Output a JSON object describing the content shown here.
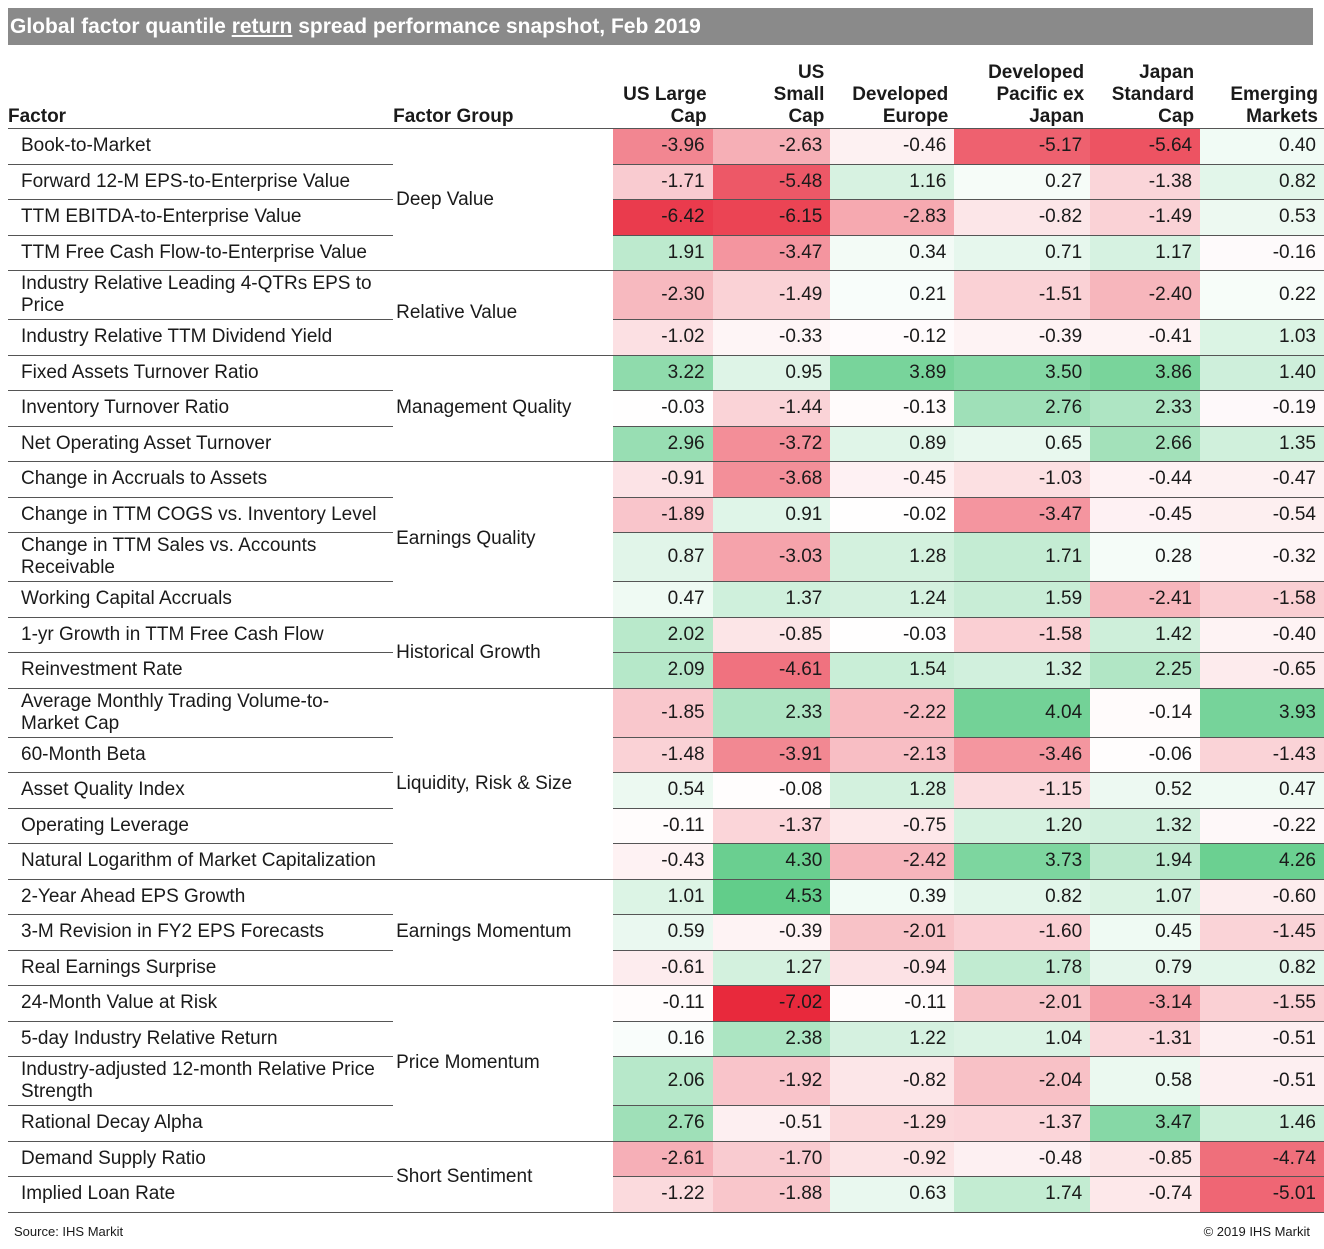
{
  "title_parts": {
    "before": "Global factor quantile ",
    "underlined": "return",
    "after": " spread performance snapshot, Feb 2019"
  },
  "footer": {
    "source": "Source: IHS Markit",
    "copyright": "© 2019 IHS Markit"
  },
  "chart_data": {
    "type": "heatmap",
    "headers": {
      "factor": "Factor",
      "group": "Factor Group",
      "columns": [
        [
          "US Large",
          "Cap"
        ],
        [
          "US",
          "Small",
          "Cap"
        ],
        [
          "Developed",
          "Europe"
        ],
        [
          "Developed",
          "Pacific ex",
          "Japan"
        ],
        [
          "Japan",
          "Standard",
          "Cap"
        ],
        [
          "Emerging",
          "Markets"
        ]
      ]
    },
    "color_scale": {
      "negative": "#e8293c",
      "neutral": "#ffffff",
      "positive": "#0bb14a",
      "max_abs": 7.02
    },
    "groups": [
      {
        "name": "Deep Value",
        "rows": [
          {
            "factor": [
              "Book-to-Market"
            ],
            "values": [
              -3.96,
              -2.63,
              -0.46,
              -5.17,
              -5.64,
              0.4
            ]
          },
          {
            "factor": [
              "Forward 12-M EPS-to-Enterprise Value"
            ],
            "values": [
              -1.71,
              -5.48,
              1.16,
              0.27,
              -1.38,
              0.82
            ]
          },
          {
            "factor": [
              "TTM EBITDA-to-Enterprise Value"
            ],
            "values": [
              -6.42,
              -6.15,
              -2.83,
              -0.82,
              -1.49,
              0.53
            ]
          },
          {
            "factor": [
              "TTM Free Cash Flow-to-Enterprise Value"
            ],
            "values": [
              1.91,
              -3.47,
              0.34,
              0.71,
              1.17,
              -0.16
            ]
          }
        ]
      },
      {
        "name": "Relative Value",
        "rows": [
          {
            "factor": [
              "Industry Relative Leading 4-QTRs EPS to",
              "Price"
            ],
            "values": [
              -2.3,
              -1.49,
              0.21,
              -1.51,
              -2.4,
              0.22
            ]
          },
          {
            "factor": [
              "Industry Relative TTM Dividend Yield"
            ],
            "values": [
              -1.02,
              -0.33,
              -0.12,
              -0.39,
              -0.41,
              1.03
            ]
          }
        ]
      },
      {
        "name": "Management Quality",
        "rows": [
          {
            "factor": [
              "Fixed Assets Turnover Ratio"
            ],
            "values": [
              3.22,
              0.95,
              3.89,
              3.5,
              3.86,
              1.4
            ]
          },
          {
            "factor": [
              "Inventory Turnover Ratio"
            ],
            "values": [
              -0.03,
              -1.44,
              -0.13,
              2.76,
              2.33,
              -0.19
            ]
          },
          {
            "factor": [
              "Net Operating Asset Turnover"
            ],
            "values": [
              2.96,
              -3.72,
              0.89,
              0.65,
              2.66,
              1.35
            ]
          }
        ]
      },
      {
        "name": "Earnings Quality",
        "rows": [
          {
            "factor": [
              "Change in Accruals to Assets"
            ],
            "values": [
              -0.91,
              -3.68,
              -0.45,
              -1.03,
              -0.44,
              -0.47
            ]
          },
          {
            "factor": [
              "Change in TTM COGS vs. Inventory Level"
            ],
            "values": [
              -1.89,
              0.91,
              -0.02,
              -3.47,
              -0.45,
              -0.54
            ]
          },
          {
            "factor": [
              "Change in TTM Sales vs. Accounts",
              "Receivable"
            ],
            "values": [
              0.87,
              -3.03,
              1.28,
              1.71,
              0.28,
              -0.32
            ]
          },
          {
            "factor": [
              "Working Capital Accruals"
            ],
            "values": [
              0.47,
              1.37,
              1.24,
              1.59,
              -2.41,
              -1.58
            ]
          }
        ]
      },
      {
        "name": "Historical Growth",
        "rows": [
          {
            "factor": [
              "1-yr Growth in TTM Free Cash Flow"
            ],
            "values": [
              2.02,
              -0.85,
              -0.03,
              -1.58,
              1.42,
              -0.4
            ]
          },
          {
            "factor": [
              "Reinvestment Rate"
            ],
            "values": [
              2.09,
              -4.61,
              1.54,
              1.32,
              2.25,
              -0.65
            ]
          }
        ]
      },
      {
        "name": "Liquidity, Risk & Size",
        "rows": [
          {
            "factor": [
              "Average Monthly Trading Volume-to-",
              "Market Cap"
            ],
            "values": [
              -1.85,
              2.33,
              -2.22,
              4.04,
              -0.14,
              3.93
            ]
          },
          {
            "factor": [
              "60-Month Beta"
            ],
            "values": [
              -1.48,
              -3.91,
              -2.13,
              -3.46,
              -0.06,
              -1.43
            ]
          },
          {
            "factor": [
              "Asset Quality Index"
            ],
            "values": [
              0.54,
              -0.08,
              1.28,
              -1.15,
              0.52,
              0.47
            ]
          },
          {
            "factor": [
              "Operating Leverage"
            ],
            "values": [
              -0.11,
              -1.37,
              -0.75,
              1.2,
              1.32,
              -0.22
            ]
          },
          {
            "factor": [
              "Natural Logarithm of Market Capitalization"
            ],
            "values": [
              -0.43,
              4.3,
              -2.42,
              3.73,
              1.94,
              4.26
            ]
          }
        ]
      },
      {
        "name": "Earnings Momentum",
        "rows": [
          {
            "factor": [
              "2-Year Ahead EPS Growth"
            ],
            "values": [
              1.01,
              4.53,
              0.39,
              0.82,
              1.07,
              -0.6
            ]
          },
          {
            "factor": [
              "3-M Revision in FY2 EPS Forecasts"
            ],
            "values": [
              0.59,
              -0.39,
              -2.01,
              -1.6,
              0.45,
              -1.45
            ]
          },
          {
            "factor": [
              "Real Earnings Surprise"
            ],
            "values": [
              -0.61,
              1.27,
              -0.94,
              1.78,
              0.79,
              0.82
            ]
          }
        ]
      },
      {
        "name": "Price Momentum",
        "rows": [
          {
            "factor": [
              "24-Month Value at Risk"
            ],
            "values": [
              -0.11,
              -7.02,
              -0.11,
              -2.01,
              -3.14,
              -1.55
            ]
          },
          {
            "factor": [
              "5-day Industry Relative Return"
            ],
            "values": [
              0.16,
              2.38,
              1.22,
              1.04,
              -1.31,
              -0.51
            ]
          },
          {
            "factor": [
              "Industry-adjusted 12-month Relative Price",
              "Strength"
            ],
            "values": [
              2.06,
              -1.92,
              -0.82,
              -2.04,
              0.58,
              -0.51
            ]
          },
          {
            "factor": [
              "Rational Decay Alpha"
            ],
            "values": [
              2.76,
              -0.51,
              -1.29,
              -1.37,
              3.47,
              1.46
            ]
          }
        ]
      },
      {
        "name": "Short Sentiment",
        "rows": [
          {
            "factor": [
              "Demand Supply Ratio"
            ],
            "values": [
              -2.61,
              -1.7,
              -0.92,
              -0.48,
              -0.85,
              -4.74
            ]
          },
          {
            "factor": [
              "Implied Loan Rate"
            ],
            "values": [
              -1.22,
              -1.88,
              0.63,
              1.74,
              -0.74,
              -5.01
            ]
          }
        ]
      }
    ]
  }
}
